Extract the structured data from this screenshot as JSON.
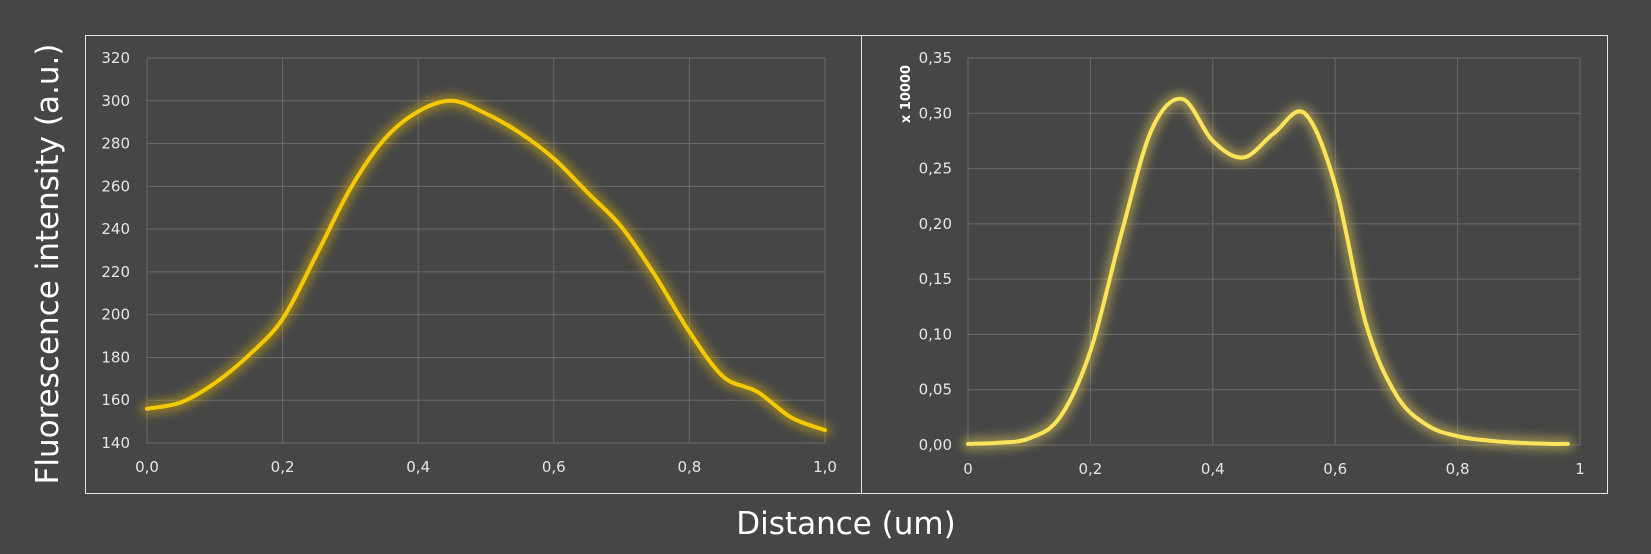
{
  "figure": {
    "ylabel": "Fluorescence intensity (a.u.)",
    "xlabel": "Distance (um)"
  },
  "colors": {
    "background": "#464646",
    "grid": "#6a6a6a",
    "tick_text": "#e6e6e6",
    "frame": "#e6e6e6",
    "left_line": "#f5c800",
    "right_line": "#fbe35a"
  },
  "chart_data": [
    {
      "type": "line",
      "grid": true,
      "xlim": [
        0,
        1
      ],
      "ylim": [
        140,
        320
      ],
      "x_ticks": [
        "0,0",
        "0,2",
        "0,4",
        "0,6",
        "0,8",
        "1,0"
      ],
      "x_tick_values": [
        0,
        0.2,
        0.4,
        0.6,
        0.8,
        1.0
      ],
      "y_ticks": [
        "140",
        "160",
        "180",
        "200",
        "220",
        "240",
        "260",
        "280",
        "300",
        "320"
      ],
      "y_tick_values": [
        140,
        160,
        180,
        200,
        220,
        240,
        260,
        280,
        300,
        320
      ],
      "series": [
        {
          "x": [
            0,
            0.05,
            0.1,
            0.15,
            0.2,
            0.25,
            0.3,
            0.35,
            0.4,
            0.45,
            0.5,
            0.55,
            0.6,
            0.65,
            0.7,
            0.75,
            0.8,
            0.85,
            0.9,
            0.95,
            1.0
          ],
          "y": [
            156,
            159,
            168,
            181,
            198,
            228,
            259,
            282,
            295,
            300,
            294,
            285,
            273,
            257,
            241,
            218,
            192,
            171,
            164,
            152,
            146
          ]
        }
      ]
    },
    {
      "type": "line",
      "grid": true,
      "xlim": [
        0,
        1
      ],
      "ylim": [
        0,
        0.35
      ],
      "x_ticks": [
        "0",
        "0,2",
        "0,4",
        "0,6",
        "0,8",
        "1"
      ],
      "x_tick_values": [
        0,
        0.2,
        0.4,
        0.6,
        0.8,
        1
      ],
      "y_ticks": [
        "0,00",
        "0,05",
        "0,10",
        "0,15",
        "0,20",
        "0,25",
        "0,30",
        "0,35"
      ],
      "y_tick_values": [
        0,
        0.05,
        0.1,
        0.15,
        0.2,
        0.25,
        0.3,
        0.35
      ],
      "y_multiplier_label": "x 10000",
      "series": [
        {
          "x": [
            0,
            0.05,
            0.1,
            0.15,
            0.2,
            0.25,
            0.3,
            0.35,
            0.4,
            0.45,
            0.5,
            0.55,
            0.6,
            0.65,
            0.7,
            0.75,
            0.8,
            0.85,
            0.9,
            0.95,
            0.98
          ],
          "y": [
            0.001,
            0.002,
            0.006,
            0.025,
            0.085,
            0.19,
            0.285,
            0.313,
            0.275,
            0.26,
            0.282,
            0.3,
            0.235,
            0.11,
            0.045,
            0.018,
            0.008,
            0.004,
            0.002,
            0.001,
            0.001
          ]
        }
      ]
    }
  ]
}
